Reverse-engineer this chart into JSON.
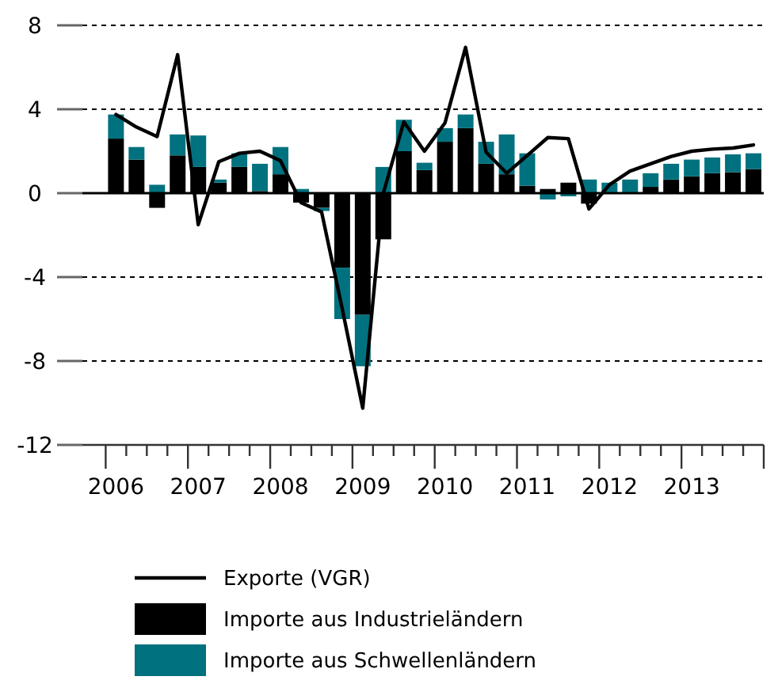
{
  "chart_data": {
    "type": "bar",
    "stacked": true,
    "categories": [
      "2006",
      null,
      null,
      null,
      "2007",
      null,
      null,
      null,
      "2008",
      null,
      null,
      null,
      "2009",
      null,
      null,
      null,
      "2010",
      null,
      null,
      null,
      "2011",
      null,
      null,
      null,
      "2012",
      null,
      null,
      null,
      "2013",
      null,
      null,
      null
    ],
    "series": [
      {
        "name": "Importe aus Industrieländern",
        "color": "#000000",
        "values": [
          2.6,
          1.6,
          -0.7,
          1.8,
          1.25,
          0.5,
          1.25,
          0.1,
          0.9,
          -0.45,
          -0.7,
          -3.55,
          -5.8,
          -2.2,
          2.0,
          1.1,
          2.45,
          3.1,
          1.4,
          0.9,
          0.35,
          0.2,
          0.5,
          -0.5,
          0.0,
          0.0,
          0.3,
          0.65,
          0.8,
          0.95,
          1.0,
          1.15
        ]
      },
      {
        "name": "Importe aus Schwellenländern",
        "color": "#00717f",
        "values": [
          1.15,
          0.6,
          0.4,
          1.0,
          1.5,
          0.15,
          0.65,
          1.3,
          1.3,
          0.2,
          -0.15,
          -2.45,
          -2.45,
          1.25,
          1.5,
          0.35,
          0.65,
          0.65,
          1.05,
          1.9,
          1.55,
          -0.3,
          -0.15,
          0.65,
          0.5,
          0.65,
          0.65,
          0.75,
          0.8,
          0.75,
          0.85,
          0.75
        ]
      },
      {
        "name": "Exporte (VGR)",
        "type": "line",
        "color": "#000000",
        "values": [
          3.75,
          3.15,
          2.7,
          6.6,
          -1.5,
          1.5,
          1.9,
          2.0,
          1.55,
          -0.45,
          -0.9,
          -5.5,
          -10.25,
          0.0,
          3.4,
          2.0,
          3.35,
          6.95,
          1.95,
          0.95,
          1.8,
          2.65,
          2.6,
          -0.75,
          0.4,
          1.05,
          1.4,
          1.75,
          2.0,
          2.1,
          2.15,
          2.3
        ]
      }
    ],
    "ylim": [
      -12,
      8
    ],
    "yticks": [
      -12,
      -8,
      -4,
      0,
      4,
      8
    ],
    "grid": "y",
    "legend": "bottom"
  }
}
